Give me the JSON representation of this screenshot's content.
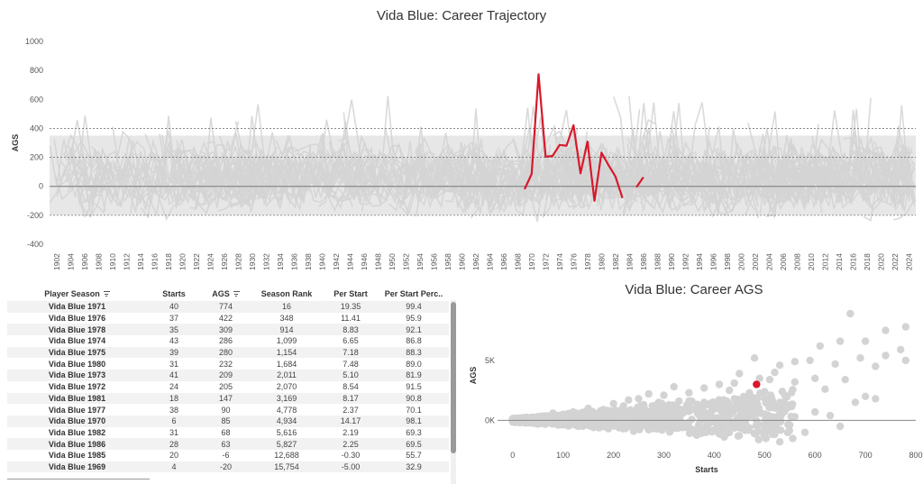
{
  "colors": {
    "highlight": "#d7192b",
    "background_lines": "#d3d3d3",
    "zero_line": "#888888",
    "grid": "#777777"
  },
  "chart_data": [
    {
      "type": "line",
      "title": "Vida Blue: Career Trajectory",
      "ylabel": "AGS",
      "xlabel": "",
      "ylim": [
        -400,
        1000
      ],
      "yticks": [
        -400,
        -200,
        0,
        200,
        400,
        600,
        800,
        1000
      ],
      "reference_lines": [
        -200,
        0,
        200,
        400
      ],
      "x_tick_labels": [
        "1902",
        "1904",
        "1906",
        "1908",
        "1910",
        "1912",
        "1914",
        "1916",
        "1918",
        "1920",
        "1922",
        "1924",
        "1926",
        "1928",
        "1930",
        "1932",
        "1934",
        "1936",
        "1938",
        "1940",
        "1942",
        "1944",
        "1946",
        "1948",
        "1950",
        "1952",
        "1954",
        "1956",
        "1958",
        "1960",
        "1962",
        "1964",
        "1966",
        "1968",
        "1970",
        "1972",
        "1974",
        "1976",
        "1978",
        "1980",
        "1982",
        "1984",
        "1986",
        "1988",
        "1990",
        "1992",
        "1994",
        "1996",
        "1998",
        "2000",
        "2002",
        "2004",
        "2006",
        "2008",
        "2010",
        "2012",
        "2014",
        "2016",
        "2018",
        "2020",
        "2022",
        "2024"
      ],
      "x_range": [
        1901,
        2025
      ],
      "background_series": "all pitchers' season AGS (gray)",
      "series": [
        {
          "name": "Vida Blue",
          "segments": [
            {
              "x": [
                1969,
                1970,
                1971,
                1972,
                1973,
                1974,
                1975,
                1976,
                1977,
                1978,
                1979,
                1980,
                1981,
                1982,
                1983
              ],
              "y": [
                -20,
                85,
                774,
                205,
                209,
                286,
                280,
                422,
                90,
                309,
                -100,
                232,
                147,
                68,
                -80
              ]
            },
            {
              "x": [
                1985,
                1986
              ],
              "y": [
                -6,
                63
              ]
            }
          ]
        }
      ]
    },
    {
      "type": "scatter",
      "title": "Vida Blue: Career AGS",
      "xlabel": "Starts",
      "ylabel": "AGS",
      "xlim": [
        -30,
        800
      ],
      "ylim": [
        -2000,
        9500
      ],
      "xticks": [
        0,
        100,
        200,
        300,
        400,
        500,
        600,
        700,
        800
      ],
      "yticks": [
        0,
        5000
      ],
      "ytick_labels": [
        "0K",
        "5K"
      ],
      "highlight_point": {
        "name": "Vida Blue",
        "x": 484,
        "y": 3000
      },
      "sample_points": [
        [
          670,
          8900
        ],
        [
          780,
          7800
        ],
        [
          740,
          7500
        ],
        [
          700,
          6600
        ],
        [
          650,
          6600
        ],
        [
          610,
          6200
        ],
        [
          770,
          5900
        ],
        [
          740,
          5400
        ],
        [
          690,
          5200
        ],
        [
          590,
          5000
        ],
        [
          640,
          4700
        ],
        [
          780,
          5000
        ],
        [
          720,
          4500
        ],
        [
          560,
          4900
        ],
        [
          530,
          4600
        ],
        [
          480,
          5200
        ],
        [
          520,
          4000
        ],
        [
          450,
          3900
        ],
        [
          600,
          3500
        ],
        [
          660,
          3400
        ],
        [
          490,
          3500
        ],
        [
          440,
          3100
        ],
        [
          510,
          3400
        ],
        [
          410,
          3000
        ],
        [
          560,
          3200
        ],
        [
          620,
          2600
        ],
        [
          700,
          2000
        ],
        [
          720,
          1800
        ],
        [
          500,
          2400
        ],
        [
          430,
          2500
        ],
        [
          380,
          2700
        ],
        [
          350,
          2300
        ],
        [
          320,
          2800
        ],
        [
          300,
          2100
        ],
        [
          270,
          2200
        ],
        [
          330,
          1600
        ],
        [
          290,
          1500
        ],
        [
          250,
          1800
        ],
        [
          220,
          1200
        ],
        [
          200,
          1400
        ],
        [
          180,
          900
        ],
        [
          150,
          1000
        ],
        [
          120,
          700
        ],
        [
          100,
          500
        ],
        [
          80,
          600
        ],
        [
          60,
          300
        ],
        [
          40,
          200
        ],
        [
          20,
          100
        ],
        [
          10,
          0
        ],
        [
          30,
          -200
        ],
        [
          50,
          -300
        ],
        [
          70,
          200
        ],
        [
          90,
          -400
        ],
        [
          110,
          300
        ],
        [
          130,
          -500
        ],
        [
          160,
          600
        ],
        [
          190,
          -700
        ],
        [
          210,
          400
        ],
        [
          240,
          -900
        ],
        [
          260,
          800
        ],
        [
          280,
          -600
        ],
        [
          310,
          500
        ],
        [
          340,
          900
        ],
        [
          360,
          -1000
        ],
        [
          380,
          400
        ],
        [
          400,
          -800
        ],
        [
          420,
          1100
        ],
        [
          450,
          -600
        ],
        [
          470,
          900
        ],
        [
          500,
          -400
        ],
        [
          530,
          1300
        ],
        [
          560,
          300
        ],
        [
          580,
          -1000
        ],
        [
          600,
          700
        ],
        [
          630,
          400
        ],
        [
          650,
          -500
        ],
        [
          680,
          1500
        ],
        [
          160,
          -300
        ],
        [
          140,
          200
        ],
        [
          200,
          -200
        ],
        [
          230,
          500
        ],
        [
          170,
          300
        ],
        [
          250,
          -400
        ],
        [
          290,
          300
        ],
        [
          330,
          -200
        ],
        [
          370,
          700
        ],
        [
          110,
          -100
        ],
        [
          70,
          -100
        ],
        [
          260,
          1300
        ],
        [
          230,
          1700
        ],
        [
          380,
          1500
        ],
        [
          440,
          1800
        ],
        [
          540,
          2100
        ],
        [
          470,
          2300
        ],
        [
          300,
          1200
        ],
        [
          410,
          1300
        ],
        [
          530,
          1500
        ]
      ]
    }
  ],
  "table": {
    "columns": [
      "Player Season",
      "Starts",
      "AGS",
      "Season Rank",
      "Per Start",
      "Per Start Perc.."
    ],
    "rows": [
      [
        "Vida Blue 1971",
        "40",
        "774",
        "16",
        "19.35",
        "99.4"
      ],
      [
        "Vida Blue 1976",
        "37",
        "422",
        "348",
        "11.41",
        "95.9"
      ],
      [
        "Vida Blue 1978",
        "35",
        "309",
        "914",
        "8.83",
        "92.1"
      ],
      [
        "Vida Blue 1974",
        "43",
        "286",
        "1,099",
        "6.65",
        "86.8"
      ],
      [
        "Vida Blue 1975",
        "39",
        "280",
        "1,154",
        "7.18",
        "88.3"
      ],
      [
        "Vida Blue 1980",
        "31",
        "232",
        "1,684",
        "7.48",
        "89.0"
      ],
      [
        "Vida Blue 1973",
        "41",
        "209",
        "2,011",
        "5.10",
        "81.9"
      ],
      [
        "Vida Blue 1972",
        "24",
        "205",
        "2,070",
        "8.54",
        "91.5"
      ],
      [
        "Vida Blue 1981",
        "18",
        "147",
        "3,169",
        "8.17",
        "90.8"
      ],
      [
        "Vida Blue 1977",
        "38",
        "90",
        "4,778",
        "2.37",
        "70.1"
      ],
      [
        "Vida Blue 1970",
        "6",
        "85",
        "4,934",
        "14.17",
        "98.1"
      ],
      [
        "Vida Blue 1982",
        "31",
        "68",
        "5,616",
        "2.19",
        "69.3"
      ],
      [
        "Vida Blue 1986",
        "28",
        "63",
        "5,827",
        "2.25",
        "69.5"
      ],
      [
        "Vida Blue 1985",
        "20",
        "-6",
        "12,688",
        "-0.30",
        "55.7"
      ],
      [
        "Vida Blue 1969",
        "4",
        "-20",
        "15,754",
        "-5.00",
        "32.9"
      ]
    ]
  }
}
